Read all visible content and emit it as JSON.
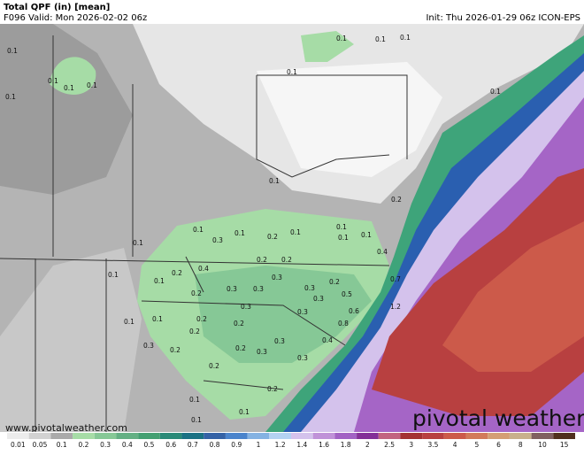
{
  "header": {
    "title": "Total QPF (in) [mean]",
    "valid": "F096 Valid: Mon 2026-02-02 06z",
    "init": "Init: Thu 2026-01-29 06z ICON-EPS"
  },
  "watermark": "www.pivotalweather.com",
  "logo": "pivotal weather",
  "map_labels": [
    "0.1",
    "0.1",
    "0.1",
    "0.1",
    "0.1",
    "0.1",
    "0.1",
    "0.1",
    "0.1",
    "0.1",
    "0.1",
    "0.1",
    "0.1",
    "0.1",
    "0.3",
    "0.1",
    "0.2",
    "0.1",
    "0.1",
    "0.1",
    "0.1",
    "0.2",
    "0.4",
    "0.2",
    "0.2",
    "0.4",
    "0.2",
    "0.1",
    "0.2",
    "0.3",
    "0.3",
    "0.3",
    "0.3",
    "0.2",
    "0.5",
    "0.7",
    "0.3",
    "0.3",
    "0.3",
    "0.6",
    "1.2",
    "0.1",
    "0.1",
    "0.2",
    "0.2",
    "0.2",
    "0.8",
    "0.4",
    "0.3",
    "0.3",
    "0.2",
    "0.2",
    "0.3",
    "0.3",
    "0.2",
    "0.2",
    "0.1",
    "0.1",
    "0.1"
  ],
  "colorbar": {
    "labels": [
      "0.01",
      "0.05",
      "0.1",
      "0.2",
      "0.3",
      "0.4",
      "0.5",
      "0.6",
      "0.7",
      "0.8",
      "0.9",
      "1",
      "1.2",
      "1.4",
      "1.6",
      "1.8",
      "2",
      "2.5",
      "3",
      "3.5",
      "4",
      "5",
      "6",
      "8",
      "10",
      "15"
    ],
    "colors": [
      "#ececec",
      "#d2d2d2",
      "#aaaaaa",
      "#a6dca6",
      "#86c896",
      "#64b084",
      "#44a072",
      "#2a8a78",
      "#1a7284",
      "#3462a6",
      "#4a84cc",
      "#84b2e2",
      "#b4d2f2",
      "#d4c2ec",
      "#c092d8",
      "#a262c4",
      "#843098",
      "#c26480",
      "#a43232",
      "#b84040",
      "#cc5a4a",
      "#d27a5a",
      "#d49e74",
      "#c8b08c",
      "#806060",
      "#50301e"
    ]
  }
}
